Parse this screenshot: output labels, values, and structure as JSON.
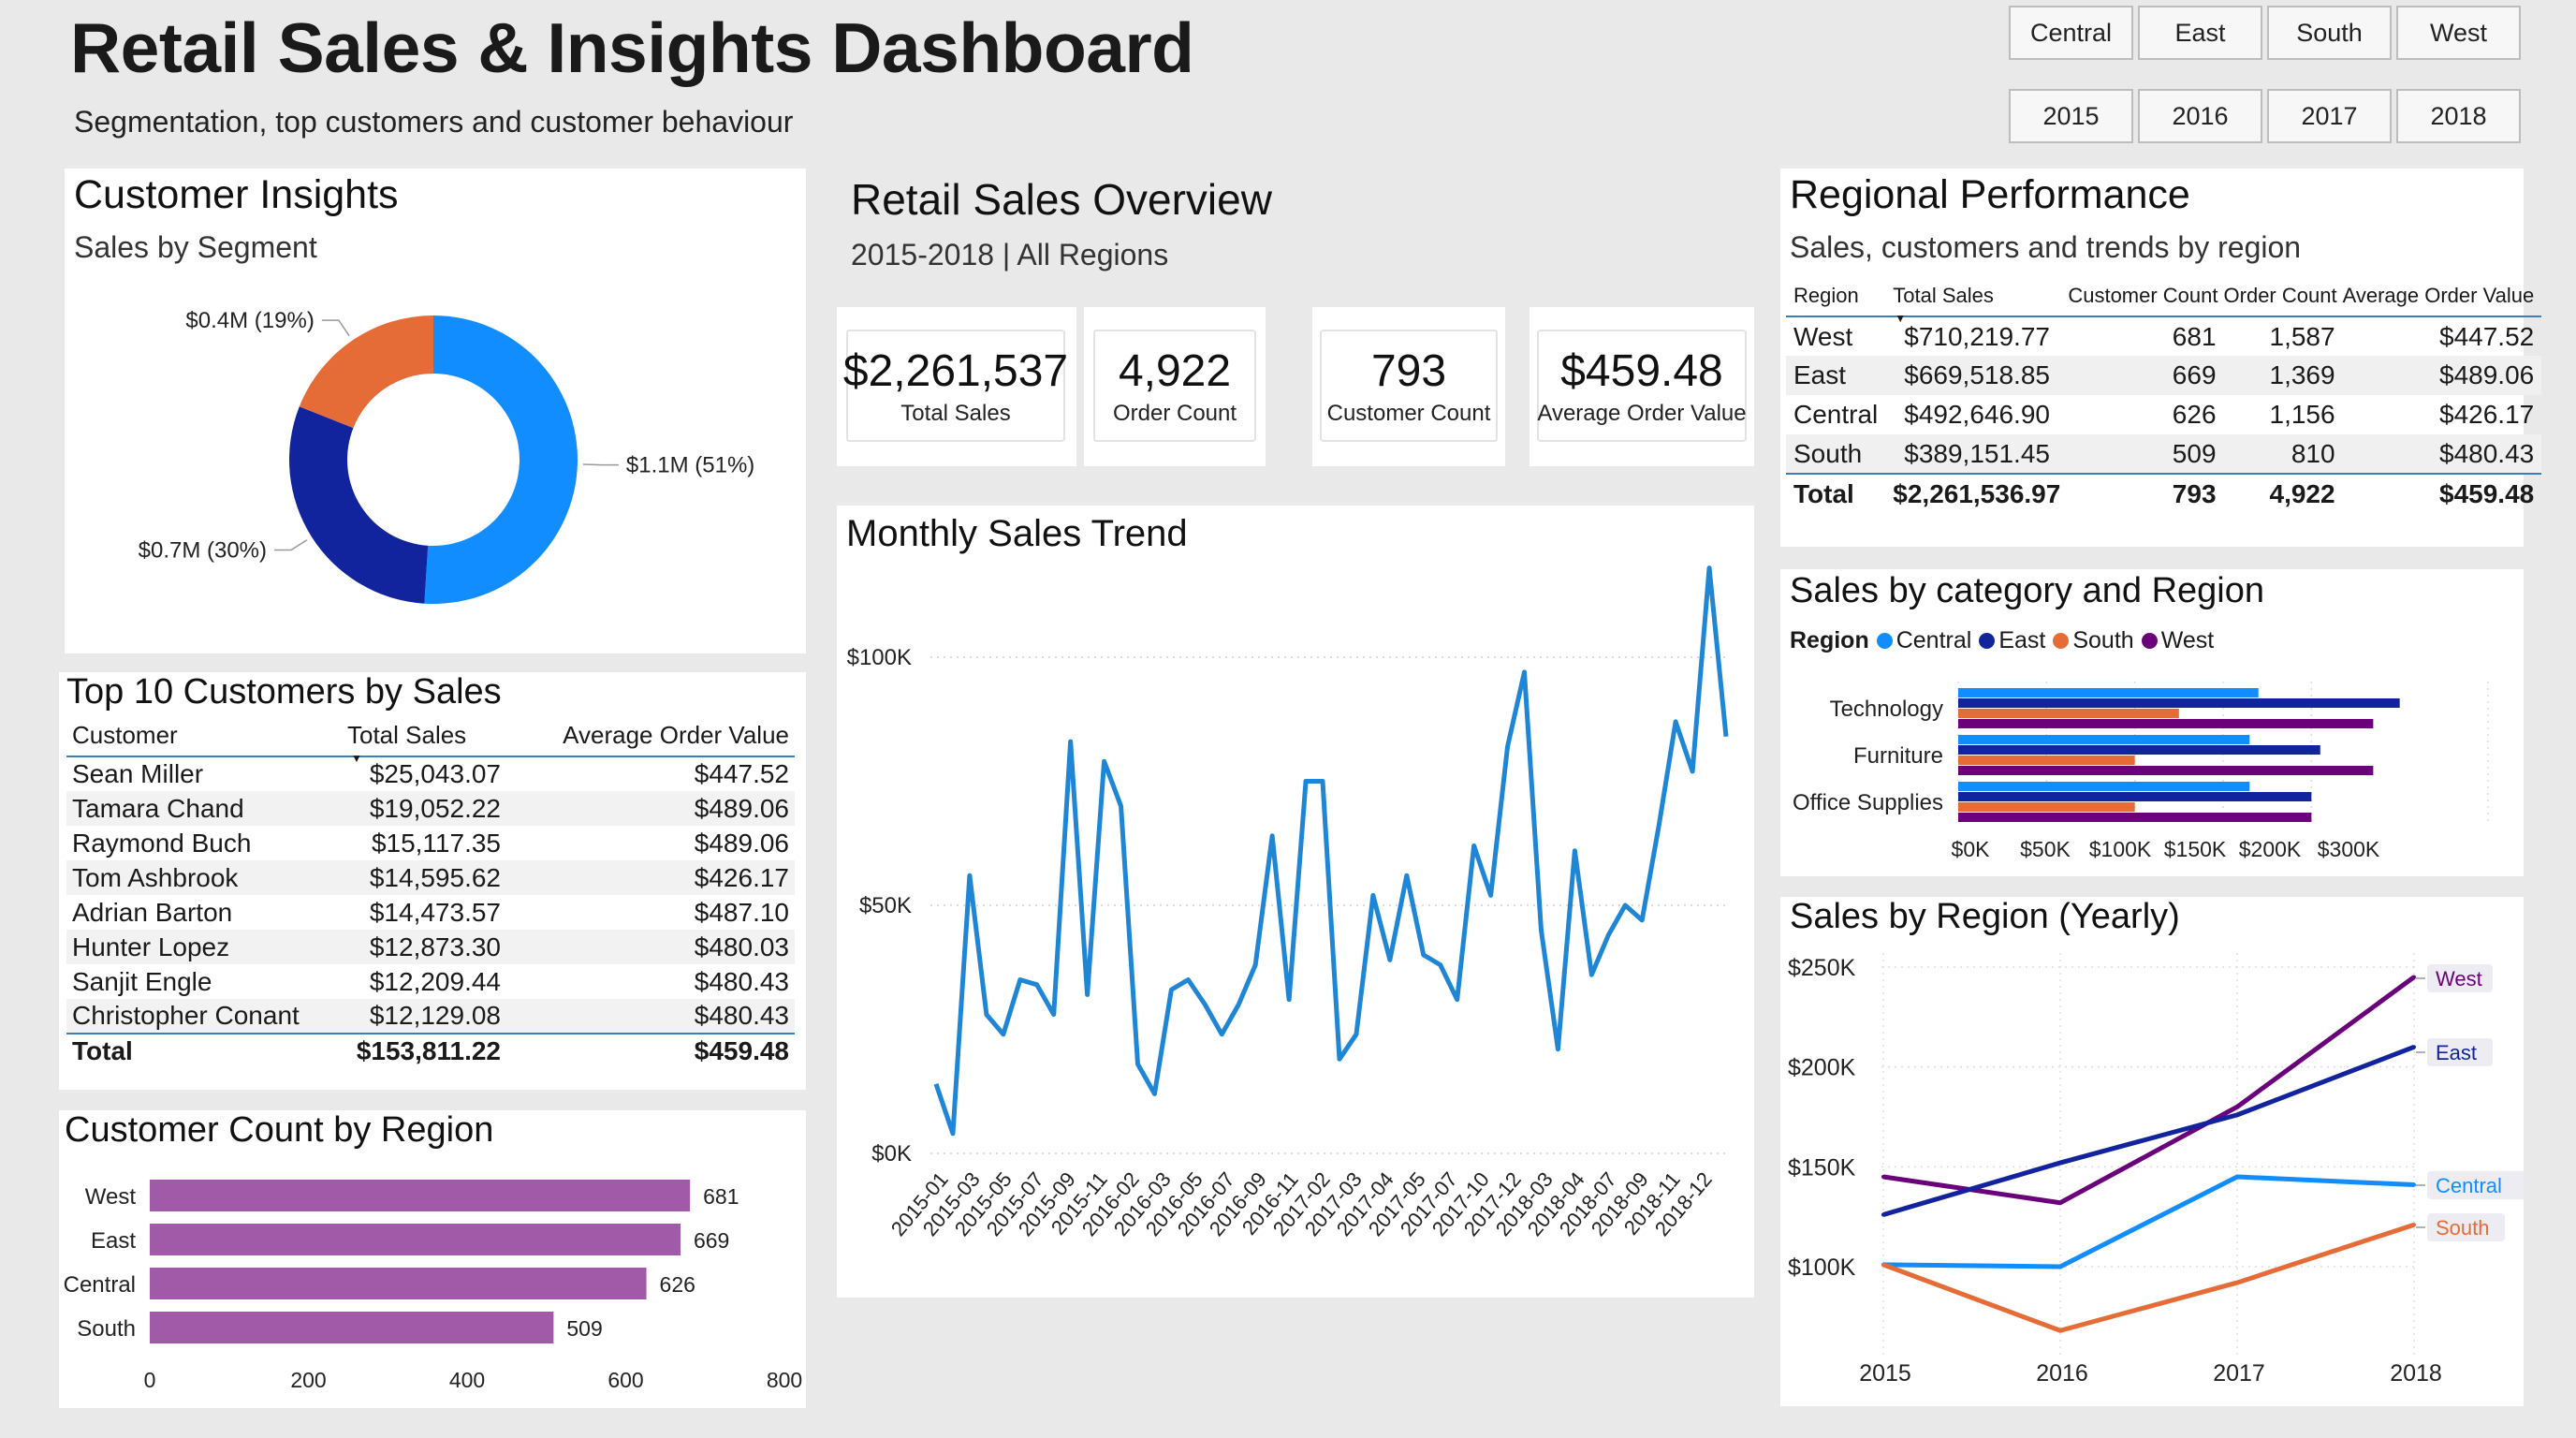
{
  "header": {
    "title": "Retail Sales & Insights Dashboard",
    "subtitle": "Segmentation, top customers and customer behaviour"
  },
  "slicers": {
    "regions": [
      "Central",
      "East",
      "South",
      "West"
    ],
    "years": [
      "2015",
      "2016",
      "2017",
      "2018"
    ]
  },
  "customer_insights": {
    "title": "Customer Insights",
    "subtitle": "Sales by Segment"
  },
  "overview": {
    "title": "Retail Sales Overview",
    "subtitle": "2015-2018 | All Regions"
  },
  "kpis": [
    {
      "value": "$2,261,537",
      "label": "Total Sales"
    },
    {
      "value": "4,922",
      "label": "Order Count"
    },
    {
      "value": "793",
      "label": "Customer Count"
    },
    {
      "value": "$459.48",
      "label": "Average Order Value"
    }
  ],
  "top_customers": {
    "title": "Top 10 Customers by Sales",
    "columns": [
      "Customer",
      "Total Sales",
      "Average Order Value"
    ],
    "rows": [
      [
        "Sean Miller",
        "$25,043.07",
        "$447.52"
      ],
      [
        "Tamara Chand",
        "$19,052.22",
        "$489.06"
      ],
      [
        "Raymond Buch",
        "$15,117.35",
        "$489.06"
      ],
      [
        "Tom Ashbrook",
        "$14,595.62",
        "$426.17"
      ],
      [
        "Adrian Barton",
        "$14,473.57",
        "$487.10"
      ],
      [
        "Hunter Lopez",
        "$12,873.30",
        "$480.03"
      ],
      [
        "Sanjit Engle",
        "$12,209.44",
        "$480.43"
      ],
      [
        "Christopher Conant",
        "$12,129.08",
        "$480.43"
      ]
    ],
    "total": [
      "Total",
      "$153,811.22",
      "$459.48"
    ]
  },
  "regional_performance": {
    "title": "Regional Performance",
    "subtitle": "Sales, customers and trends by region",
    "columns": [
      "Region",
      "Total Sales",
      "Customer Count",
      "Order Count",
      "Average Order Value"
    ],
    "rows": [
      [
        "West",
        "$710,219.77",
        "681",
        "1,587",
        "$447.52"
      ],
      [
        "East",
        "$669,518.85",
        "669",
        "1,369",
        "$489.06"
      ],
      [
        "Central",
        "$492,646.90",
        "626",
        "1,156",
        "$426.17"
      ],
      [
        "South",
        "$389,151.45",
        "509",
        "810",
        "$480.43"
      ]
    ],
    "total": [
      "Total",
      "$2,261,536.97",
      "793",
      "4,922",
      "$459.48"
    ]
  },
  "colors": {
    "central": "#118dff",
    "east": "#12239e",
    "south": "#e66c37",
    "west": "#6b007b",
    "trend": "#1f86d6",
    "customer_bar": "#a05aa8"
  },
  "chart_data": [
    {
      "id": "segment_donut",
      "type": "pie",
      "donut": true,
      "labels": [
        "$1.1M (51%)",
        "$0.7M (30%)",
        "$0.4M (19%)"
      ],
      "values": [
        1.1,
        0.7,
        0.4
      ],
      "percent": [
        51,
        30,
        19
      ],
      "colors": [
        "#118dff",
        "#12239e",
        "#e66c37"
      ]
    },
    {
      "id": "monthly_trend",
      "type": "line",
      "title": "Monthly Sales Trend",
      "x": [
        "2015-01",
        "2015-02",
        "2015-03",
        "2015-04",
        "2015-05",
        "2015-06",
        "2015-07",
        "2015-08",
        "2015-09",
        "2015-10",
        "2015-11",
        "2015-12",
        "2016-01",
        "2016-02",
        "2016-03",
        "2016-04",
        "2016-05",
        "2016-06",
        "2016-07",
        "2016-08",
        "2016-09",
        "2016-10",
        "2016-11",
        "2016-12",
        "2017-01",
        "2017-02",
        "2017-03",
        "2017-04",
        "2017-05",
        "2017-06",
        "2017-07",
        "2017-08",
        "2017-09",
        "2017-10",
        "2017-11",
        "2017-12",
        "2018-01",
        "2018-02",
        "2018-03",
        "2018-04",
        "2018-05",
        "2018-06",
        "2018-07",
        "2018-08",
        "2018-09",
        "2018-10",
        "2018-11",
        "2018-12"
      ],
      "x_tick_labels": [
        "2015-01",
        "2015-03",
        "2015-05",
        "2015-07",
        "2015-09",
        "2015-11",
        "2016-02",
        "2016-03",
        "2016-05",
        "2016-07",
        "2016-09",
        "2016-11",
        "2017-02",
        "2017-03",
        "2017-04",
        "2017-05",
        "2017-07",
        "2017-10",
        "2017-12",
        "2018-03",
        "2018-04",
        "2018-07",
        "2018-09",
        "2018-11",
        "2018-12"
      ],
      "values": [
        14000,
        4000,
        56000,
        28000,
        24000,
        35000,
        34000,
        28000,
        83000,
        32000,
        79000,
        70000,
        18000,
        12000,
        33000,
        35000,
        30000,
        24000,
        30000,
        38000,
        64000,
        31000,
        75000,
        75000,
        19000,
        24000,
        52000,
        39000,
        56000,
        40000,
        38000,
        31000,
        62000,
        52000,
        82000,
        97000,
        45000,
        21000,
        61000,
        36000,
        44000,
        50000,
        47000,
        66000,
        87000,
        77000,
        118000,
        84000
      ],
      "ylim": [
        0,
        120000
      ],
      "y_ticks": [
        "$0K",
        "$50K",
        "$100K"
      ],
      "y_tick_values": [
        0,
        50000,
        100000
      ]
    },
    {
      "id": "customer_count_region",
      "type": "bar",
      "orientation": "horizontal",
      "title": "Customer Count by Region",
      "categories": [
        "West",
        "East",
        "Central",
        "South"
      ],
      "values": [
        681,
        669,
        626,
        509
      ],
      "xlim": [
        0,
        800
      ],
      "x_ticks": [
        "0",
        "200",
        "400",
        "600",
        "800"
      ]
    },
    {
      "id": "category_region",
      "type": "bar",
      "orientation": "horizontal",
      "title": "Sales by category and Region",
      "legend_title": "Region",
      "categories": [
        "Technology",
        "Furniture",
        "Office Supplies"
      ],
      "series": [
        {
          "name": "Central",
          "values": [
            170000,
            165000,
            165000
          ]
        },
        {
          "name": "East",
          "values": [
            250000,
            205000,
            200000
          ]
        },
        {
          "name": "South",
          "values": [
            125000,
            100000,
            100000
          ]
        },
        {
          "name": "West",
          "values": [
            235000,
            235000,
            200000
          ]
        }
      ],
      "xlim": [
        0,
        300000
      ],
      "x_ticks": [
        "$0K",
        "$50K",
        "$100K",
        "$150K",
        "$200K",
        "$300K"
      ]
    },
    {
      "id": "region_yearly",
      "type": "line",
      "title": "Sales by Region (Yearly)",
      "x": [
        "2015",
        "2016",
        "2017",
        "2018"
      ],
      "series": [
        {
          "name": "West",
          "values": [
            145000,
            132000,
            180000,
            245000
          ]
        },
        {
          "name": "East",
          "values": [
            126000,
            152000,
            176000,
            210000
          ]
        },
        {
          "name": "Central",
          "values": [
            101000,
            100000,
            145000,
            141000
          ]
        },
        {
          "name": "South",
          "values": [
            101000,
            68000,
            92000,
            121000
          ]
        }
      ],
      "ylim": [
        60000,
        250000
      ],
      "y_ticks": [
        "$100K",
        "$150K",
        "$200K",
        "$250K"
      ],
      "y_tick_values": [
        100000,
        150000,
        200000,
        250000
      ]
    }
  ]
}
